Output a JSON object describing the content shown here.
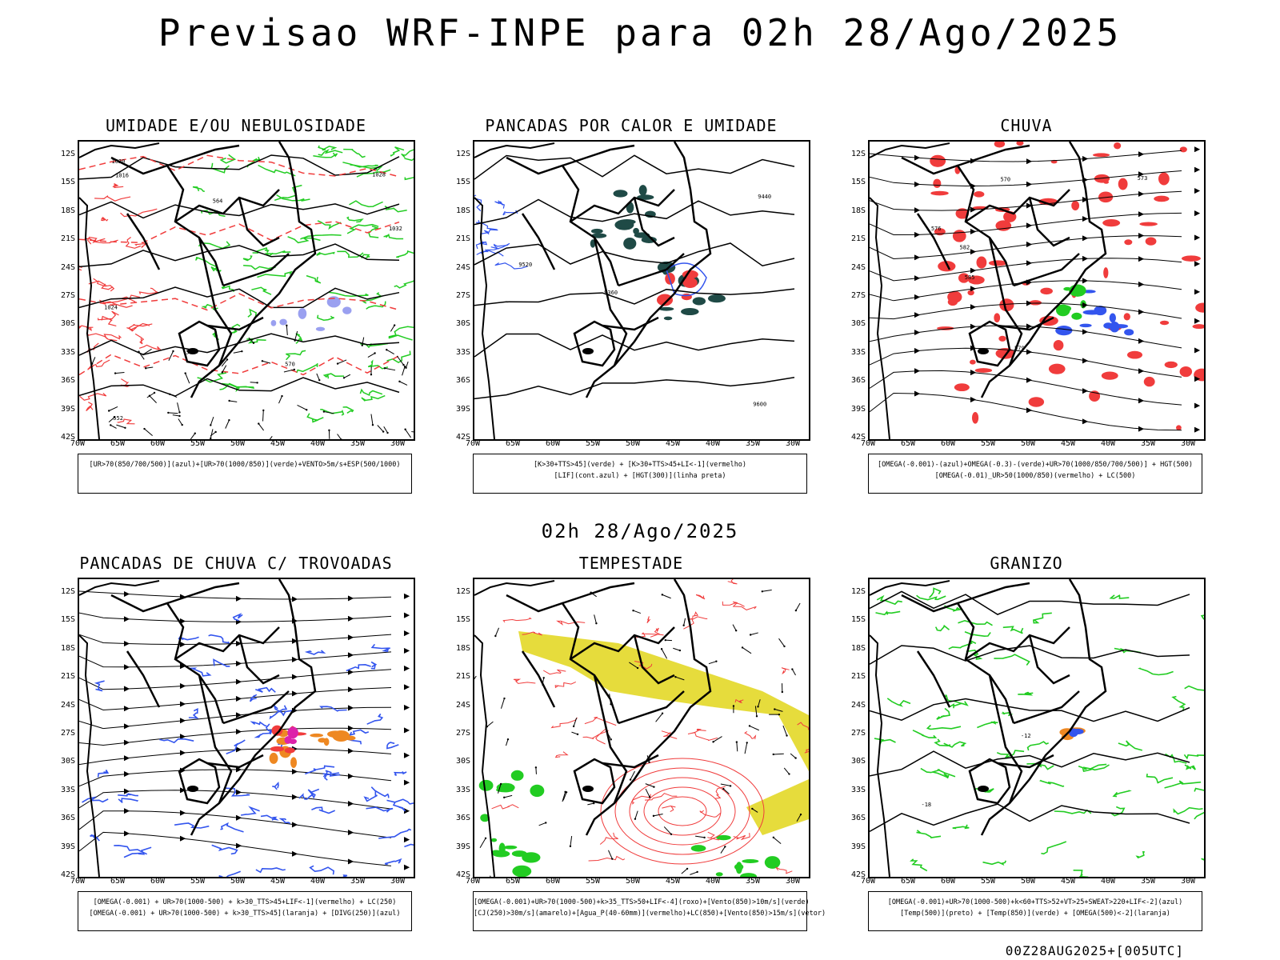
{
  "title": "Previsao WRF-INPE  para 02h 28/Ago/2025",
  "mid_title": "02h 28/Ago/2025",
  "footer": "00Z28AUG2025+[005UTC]",
  "axes": {
    "y": [
      "12S",
      "15S",
      "18S",
      "21S",
      "24S",
      "27S",
      "30S",
      "33S",
      "36S",
      "39S",
      "42S"
    ],
    "x": [
      "70W",
      "65W",
      "60W",
      "55W",
      "50W",
      "45W",
      "40W",
      "35W",
      "30W"
    ]
  },
  "panels": [
    {
      "title": "UMIDADE E/OU NEBULOSIDADE",
      "legend": [
        "[UR>70(850/700/500)](azul)+[UR>70(1000/850)](verde)+VENTO>5m/s+ESP(500/1000)"
      ],
      "contour_labels": [
        "1016",
        "1020",
        "1024",
        "1028",
        "1032",
        "570",
        "564",
        "558",
        "552"
      ]
    },
    {
      "title": "PANCADAS POR CALOR E UMIDADE",
      "legend": [
        "[K>30+TTS>45](verde) + [K>30+TTS>45+LI<-1](vermelho)",
        "[LIF](cont.azul) + [HGT(300)](linha preta)"
      ],
      "contour_labels": [
        "9600",
        "9520",
        "9440",
        "9360"
      ]
    },
    {
      "title": "CHUVA",
      "legend": [
        "[OMEGA(-0.001)-(azul)+OMEGA(-0.3)-(verde)+UR>70(1000/850/700/500)] + HGT(500)",
        "[OMEGA(-0.01)_UR>50(1000/850)(vermelho) + LC(500)"
      ],
      "contour_labels": [
        "585",
        "582",
        "579",
        "576",
        "573",
        "570"
      ]
    },
    {
      "title": "PANCADAS DE CHUVA C/ TROVOADAS",
      "legend": [
        "[OMEGA(-0.001) + UR>70(1000-500) + k>30_TTS>45+LIF<-1](vermelho) + LC(250)",
        "[OMEGA(-0.001) + UR>70(1000-500) + k>30_TTS>45](laranja) + [DIVG(250)](azul)"
      ],
      "contour_labels": []
    },
    {
      "title": "TEMPESTADE",
      "legend": [
        "[OMEGA(-0.001)+UR>70(1000-500)+k>35_TTS>50+LIF<-4](roxo)+[Vento(850)>10m/s](verde)",
        "[CJ(250)>30m/s](amarelo)+[Agua_P(40-60mm)](vermelho)+LC(850)+[Vento(850)>15m/s](vetor)"
      ],
      "contour_labels": []
    },
    {
      "title": "GRANIZO",
      "legend": [
        "[OMEGA(-0.001)+UR>70(1000-500)+k<60+TTS>52+VT>25+SWEAT>220+LIF<-2](azul)",
        "[Temp(500)](preto) + [Temp(850)](verde) + [OMEGA(500)<-2](laranja)"
      ],
      "contour_labels": [
        "-12",
        "-18"
      ]
    }
  ],
  "colors": {
    "red": "#f03c3c",
    "green": "#22cc22",
    "blue": "#3355ee",
    "yellow": "#e6dc3c",
    "dark_teal": "#1f4a46",
    "lavender": "#9aa0f0",
    "orange": "#ee8822",
    "magenta": "#dd22aa"
  }
}
